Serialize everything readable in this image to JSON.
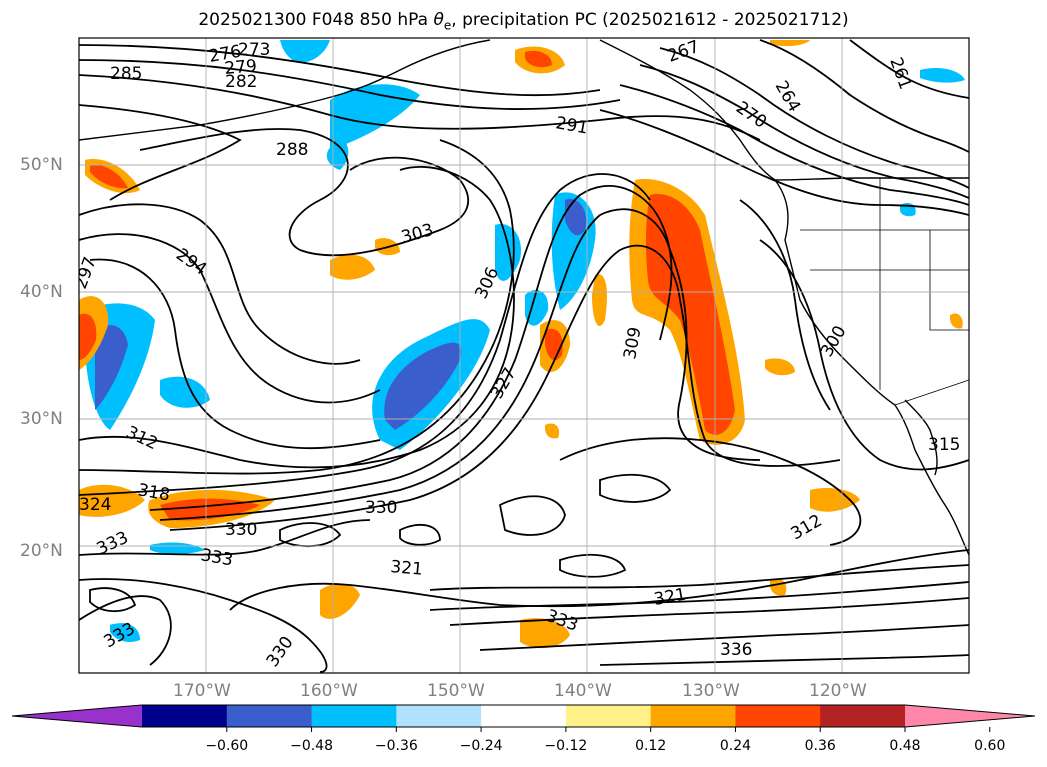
{
  "title": {
    "prefix": "2025021300 F048 850 hPa ",
    "theta_symbol": "θ",
    "theta_sub": "e",
    "suffix": ", precipitation PC (2025021612 - 2025021712)"
  },
  "map": {
    "projection": "PlateCarree",
    "lon_range": [
      -180,
      -110
    ],
    "lat_range": [
      10,
      60
    ],
    "grid": true,
    "land_color": "#000000",
    "contour_color": "#000000"
  },
  "axes": {
    "lat_ticks": [
      "20°N",
      "30°N",
      "40°N",
      "50°N"
    ],
    "lon_ticks": [
      "170°W",
      "160°W",
      "150°W",
      "140°W",
      "130°W",
      "120°W"
    ],
    "tick_color": "#808080"
  },
  "contour_labels": [
    "273",
    "276",
    "279",
    "282",
    "285",
    "288",
    "291",
    "294",
    "297",
    "300",
    "303",
    "306",
    "309",
    "312",
    "315",
    "318",
    "321",
    "324",
    "327",
    "330",
    "333",
    "336",
    "261",
    "264",
    "267",
    "270"
  ],
  "colorbar": {
    "ticks": [
      "−0.60",
      "−0.48",
      "−0.36",
      "−0.24",
      "−0.12",
      "0.12",
      "0.24",
      "0.36",
      "0.48",
      "0.60"
    ],
    "colors": [
      "#9932cc",
      "#00008b",
      "#3a5fcd",
      "#00bfff",
      "#b0e2ff",
      "#ffffff",
      "#fff08a",
      "#ffa500",
      "#ff4500",
      "#b22222",
      "#ff88aa"
    ],
    "extend": "both"
  }
}
